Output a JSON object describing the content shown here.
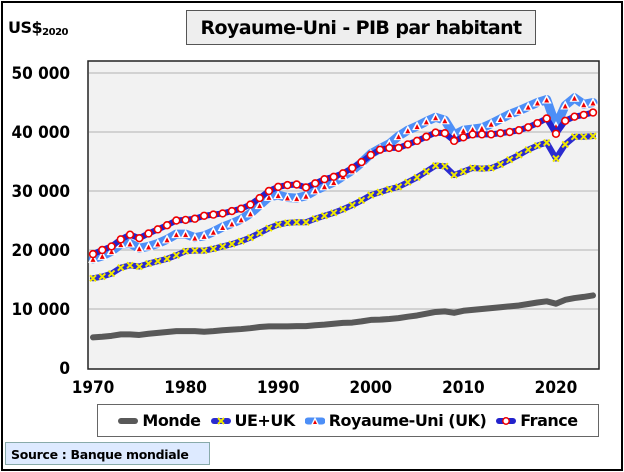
{
  "chart_data": {
    "type": "line",
    "title": "Royaume-Uni - PIB par habitant",
    "ylabel": "US$",
    "ylabel_sub": "2020",
    "xlabel": "",
    "xlim": [
      1970,
      2024
    ],
    "ylim": [
      0,
      50000
    ],
    "x_ticks": [
      "1970",
      "1980",
      "1990",
      "2000",
      "2010",
      "2020"
    ],
    "y_ticks": [
      "0",
      "10 000",
      "20 000",
      "30 000",
      "40 000",
      "50 000"
    ],
    "grid": true,
    "legend_position": "bottom",
    "x": [
      1970,
      1971,
      1972,
      1973,
      1974,
      1975,
      1976,
      1977,
      1978,
      1979,
      1980,
      1981,
      1982,
      1983,
      1984,
      1985,
      1986,
      1987,
      1988,
      1989,
      1990,
      1991,
      1992,
      1993,
      1994,
      1995,
      1996,
      1997,
      1998,
      1999,
      2000,
      2001,
      2002,
      2003,
      2004,
      2005,
      2006,
      2007,
      2008,
      2009,
      2010,
      2011,
      2012,
      2013,
      2014,
      2015,
      2016,
      2017,
      2018,
      2019,
      2020,
      2021,
      2022,
      2023,
      2024
    ],
    "series": [
      {
        "name": "Monde",
        "color": "#595959",
        "values": [
          5200,
          5300,
          5450,
          5700,
          5700,
          5600,
          5800,
          5950,
          6100,
          6250,
          6250,
          6250,
          6150,
          6250,
          6400,
          6500,
          6600,
          6750,
          6950,
          7050,
          7050,
          7050,
          7100,
          7100,
          7250,
          7350,
          7500,
          7650,
          7700,
          7900,
          8150,
          8200,
          8300,
          8450,
          8700,
          8900,
          9200,
          9500,
          9600,
          9350,
          9700,
          9850,
          10000,
          10150,
          10300,
          10450,
          10600,
          10850,
          11100,
          11300,
          10900,
          11550,
          11850,
          12050,
          12300
        ]
      },
      {
        "name": "UE+UK",
        "color": "#2b2bd0",
        "values": [
          15200,
          15500,
          16000,
          17000,
          17400,
          17200,
          17700,
          18100,
          18500,
          19100,
          19800,
          19900,
          19900,
          20200,
          20600,
          21000,
          21500,
          22100,
          22900,
          23700,
          24300,
          24600,
          24700,
          24700,
          25300,
          25800,
          26300,
          26900,
          27600,
          28400,
          29300,
          29800,
          30300,
          30700,
          31500,
          32300,
          33300,
          34300,
          34200,
          32700,
          33300,
          33900,
          33800,
          33900,
          34500,
          35300,
          36100,
          37000,
          37700,
          38200,
          35500,
          37900,
          39200,
          39200,
          39300
        ]
      },
      {
        "name": "Royaume-Uni (UK)",
        "color": "#4d8ff7",
        "values": [
          18500,
          19000,
          19800,
          21000,
          21100,
          20300,
          20600,
          21100,
          21800,
          22700,
          22700,
          22100,
          22400,
          23100,
          23900,
          24500,
          25200,
          26200,
          27600,
          29000,
          29300,
          28900,
          28800,
          29200,
          30100,
          30800,
          31500,
          32500,
          33500,
          34800,
          36300,
          37200,
          38000,
          39300,
          40300,
          41000,
          41800,
          42500,
          42000,
          39500,
          40300,
          40500,
          40700,
          41400,
          42200,
          43000,
          43600,
          44300,
          45000,
          45500,
          41000,
          44500,
          45800,
          44700,
          45000
        ]
      },
      {
        "name": "France",
        "color": "#2222cc",
        "values": [
          19300,
          20000,
          20600,
          21800,
          22600,
          22000,
          22800,
          23500,
          24200,
          25000,
          25100,
          25300,
          25800,
          26000,
          26200,
          26600,
          27000,
          27700,
          28800,
          30000,
          30700,
          31000,
          31100,
          30600,
          31300,
          32000,
          32400,
          33000,
          33900,
          34900,
          36100,
          37000,
          37300,
          37300,
          37900,
          38500,
          39200,
          39900,
          39800,
          38500,
          39100,
          39600,
          39600,
          39600,
          39800,
          40000,
          40300,
          40800,
          41500,
          42300,
          39700,
          41900,
          42600,
          42900,
          43300
        ]
      }
    ],
    "source": "Source : Banque mondiale"
  }
}
